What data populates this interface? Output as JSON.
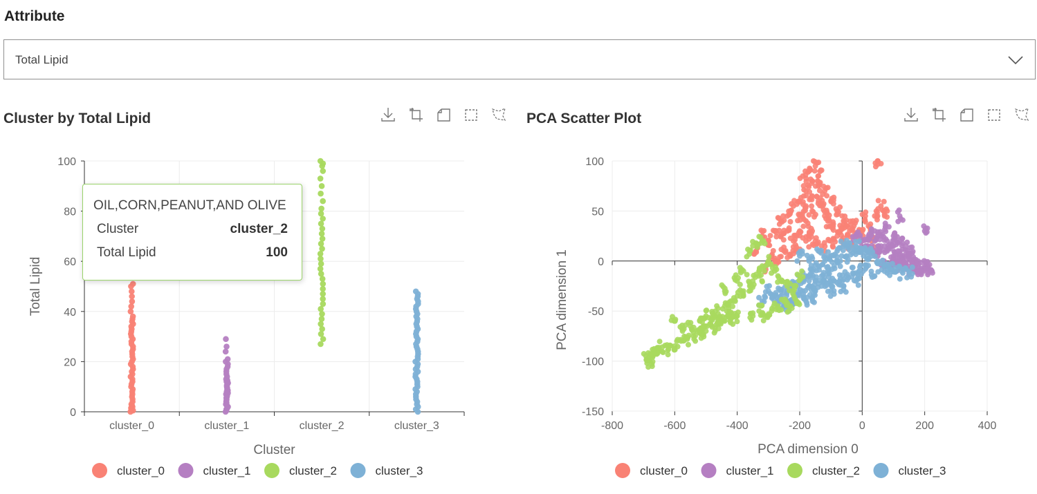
{
  "attribute": {
    "label": "Attribute",
    "selected": "Total Lipid"
  },
  "colors": {
    "cluster_0": "#f98275",
    "cluster_1": "#b57fc2",
    "cluster_2": "#a8d95e",
    "cluster_3": "#7eb1d6"
  },
  "toolbar_icons": [
    "download-icon",
    "rect-select-icon",
    "lasso-icon",
    "zoom-icon",
    "polygon-select-icon"
  ],
  "left_panel": {
    "title": "Cluster by Total Lipid"
  },
  "right_panel": {
    "title": "PCA Scatter Plot"
  },
  "tooltip": {
    "title": "OIL,CORN,PEANUT,AND OLIVE",
    "rows": [
      {
        "label": "Cluster",
        "value": "cluster_2"
      },
      {
        "label": "Total Lipid",
        "value": "100"
      }
    ]
  },
  "chart_data": [
    {
      "type": "scatter",
      "title": "Cluster by Total Lipid",
      "xlabel": "Cluster",
      "ylabel": "Total Lipid",
      "categories": [
        "cluster_0",
        "cluster_1",
        "cluster_2",
        "cluster_3"
      ],
      "ylim": [
        0,
        100
      ],
      "yticks": [
        0,
        20,
        40,
        60,
        80,
        100
      ],
      "grid": true,
      "legend": "bottom",
      "series": [
        {
          "name": "cluster_0",
          "range": [
            0,
            51
          ],
          "values": [
            0,
            0.5,
            1,
            1.5,
            2,
            2.5,
            3,
            4,
            5,
            6,
            7,
            8,
            9,
            10,
            11,
            12,
            13,
            14,
            15,
            16,
            17,
            18,
            19,
            20,
            21,
            22,
            23,
            24,
            25,
            26,
            27,
            28,
            29,
            30,
            31,
            32,
            33,
            34,
            35,
            36,
            37,
            38,
            40,
            42,
            44,
            46,
            48,
            50,
            51
          ]
        },
        {
          "name": "cluster_1",
          "range": [
            0,
            29
          ],
          "values": [
            0,
            0.5,
            1,
            1.5,
            2,
            2.5,
            3,
            3.5,
            4,
            4.5,
            5,
            5.5,
            6,
            6.5,
            7,
            7.5,
            8,
            8.5,
            9,
            9.5,
            10,
            10.5,
            11,
            11.5,
            12,
            12.5,
            13,
            14,
            15,
            16,
            17,
            18,
            19,
            20,
            21,
            24,
            26,
            29
          ]
        },
        {
          "name": "cluster_2",
          "range": [
            27,
            100
          ],
          "values": [
            27,
            29,
            31,
            33,
            35,
            37,
            39,
            41,
            43,
            45,
            47,
            49,
            51,
            53,
            55,
            57,
            59,
            61,
            63,
            65,
            67,
            69,
            71,
            73,
            75,
            77,
            79,
            81,
            84,
            87,
            90,
            93,
            96,
            98,
            99,
            100
          ]
        },
        {
          "name": "cluster_3",
          "range": [
            0,
            48
          ],
          "values": [
            0,
            1,
            2,
            3,
            4,
            5,
            6,
            7,
            8,
            9,
            10,
            11,
            12,
            13,
            14,
            15,
            16,
            17,
            18,
            19,
            20,
            21,
            22,
            23,
            24,
            25,
            26,
            27,
            28,
            29,
            30,
            31,
            32,
            33,
            34,
            35,
            36,
            37,
            38,
            39,
            40,
            41,
            42,
            43,
            44,
            45,
            46,
            47,
            48
          ]
        }
      ]
    },
    {
      "type": "scatter",
      "title": "PCA Scatter Plot",
      "xlabel": "PCA dimension 0",
      "ylabel": "PCA dimension 1",
      "xlim": [
        -800,
        400
      ],
      "ylim": [
        -150,
        100
      ],
      "xticks": [
        -800,
        -600,
        -400,
        -200,
        0,
        200,
        400
      ],
      "yticks": [
        -150,
        -100,
        -50,
        0,
        50,
        100
      ],
      "grid": true,
      "legend": "bottom",
      "series": [
        {
          "name": "cluster_0",
          "points": [
            [
              -300,
              20
            ],
            [
              -280,
              30
            ],
            [
              -260,
              40
            ],
            [
              -240,
              45
            ],
            [
              -220,
              55
            ],
            [
              -200,
              60
            ],
            [
              -180,
              70
            ],
            [
              -160,
              80
            ],
            [
              -150,
              95
            ],
            [
              -170,
              90
            ],
            [
              -140,
              85
            ],
            [
              -120,
              70
            ],
            [
              -100,
              60
            ],
            [
              -80,
              50
            ],
            [
              -60,
              40
            ],
            [
              -40,
              30
            ],
            [
              -20,
              25
            ],
            [
              0,
              30
            ],
            [
              20,
              35
            ],
            [
              40,
              45
            ],
            [
              60,
              55
            ],
            [
              50,
              100
            ],
            [
              -250,
              10
            ],
            [
              -220,
              20
            ],
            [
              -200,
              30
            ],
            [
              -180,
              40
            ],
            [
              -160,
              50
            ],
            [
              -140,
              60
            ],
            [
              -120,
              45
            ],
            [
              -100,
              35
            ],
            [
              -80,
              25
            ],
            [
              -60,
              20
            ],
            [
              -40,
              15
            ],
            [
              -200,
              45
            ],
            [
              -180,
              55
            ],
            [
              -160,
              65
            ],
            [
              -140,
              75
            ],
            [
              -190,
              85
            ],
            [
              -130,
              55
            ],
            [
              -110,
              40
            ],
            [
              -310,
              -5
            ],
            [
              -290,
              5
            ],
            [
              -270,
              0
            ],
            [
              -230,
              5
            ],
            [
              -210,
              10
            ],
            [
              -150,
              20
            ],
            [
              -130,
              15
            ],
            [
              -100,
              20
            ],
            [
              -70,
              30
            ],
            [
              -50,
              35
            ],
            [
              -30,
              40
            ],
            [
              10,
              45
            ],
            [
              30,
              20
            ],
            [
              80,
              50
            ],
            [
              -340,
              10
            ],
            [
              -320,
              25
            ],
            [
              -260,
              25
            ],
            [
              -240,
              30
            ],
            [
              -180,
              20
            ],
            [
              -160,
              30
            ]
          ]
        },
        {
          "name": "cluster_1",
          "points": [
            [
              -20,
              25
            ],
            [
              0,
              20
            ],
            [
              20,
              25
            ],
            [
              40,
              20
            ],
            [
              60,
              15
            ],
            [
              80,
              10
            ],
            [
              100,
              5
            ],
            [
              120,
              0
            ],
            [
              140,
              -2
            ],
            [
              160,
              -4
            ],
            [
              180,
              -6
            ],
            [
              200,
              -8
            ],
            [
              220,
              -10
            ],
            [
              40,
              30
            ],
            [
              60,
              25
            ],
            [
              80,
              20
            ],
            [
              100,
              15
            ],
            [
              120,
              10
            ],
            [
              140,
              5
            ],
            [
              160,
              0
            ],
            [
              180,
              -3
            ],
            [
              200,
              -5
            ],
            [
              100,
              25
            ],
            [
              120,
              20
            ],
            [
              140,
              15
            ],
            [
              160,
              8
            ],
            [
              120,
              45
            ],
            [
              200,
              30
            ],
            [
              150,
              -8
            ],
            [
              90,
              -5
            ],
            [
              50,
              5
            ],
            [
              70,
              0
            ],
            [
              30,
              10
            ],
            [
              10,
              15
            ],
            [
              210,
              -8
            ],
            [
              190,
              -10
            ],
            [
              170,
              -9
            ],
            [
              130,
              -6
            ],
            [
              110,
              -4
            ],
            [
              75,
              35
            ]
          ]
        },
        {
          "name": "cluster_3",
          "points": [
            [
              -300,
              -30
            ],
            [
              -270,
              -40
            ],
            [
              -250,
              -45
            ],
            [
              -230,
              -40
            ],
            [
              -210,
              -35
            ],
            [
              -190,
              -30
            ],
            [
              -170,
              -25
            ],
            [
              -150,
              -20
            ],
            [
              -130,
              -15
            ],
            [
              -110,
              -10
            ],
            [
              -90,
              -5
            ],
            [
              -70,
              0
            ],
            [
              -50,
              5
            ],
            [
              -30,
              8
            ],
            [
              -10,
              10
            ],
            [
              10,
              8
            ],
            [
              30,
              5
            ],
            [
              50,
              0
            ],
            [
              70,
              -5
            ],
            [
              90,
              -8
            ],
            [
              110,
              -10
            ],
            [
              130,
              -12
            ],
            [
              150,
              -12
            ],
            [
              -200,
              -20
            ],
            [
              -180,
              -15
            ],
            [
              -160,
              -10
            ],
            [
              -140,
              -5
            ],
            [
              -120,
              0
            ],
            [
              -100,
              5
            ],
            [
              -80,
              10
            ],
            [
              -60,
              15
            ],
            [
              -40,
              18
            ],
            [
              -20,
              15
            ],
            [
              0,
              12
            ],
            [
              20,
              10
            ],
            [
              -150,
              -30
            ],
            [
              -130,
              -25
            ],
            [
              -110,
              -22
            ],
            [
              -90,
              -20
            ],
            [
              -70,
              -18
            ],
            [
              -50,
              -15
            ],
            [
              -30,
              -12
            ],
            [
              -10,
              -10
            ],
            [
              10,
              -8
            ],
            [
              -180,
              -40
            ],
            [
              -160,
              -38
            ],
            [
              -240,
              -30
            ],
            [
              -220,
              -25
            ],
            [
              -200,
              5
            ],
            [
              -170,
              0
            ],
            [
              -140,
              10
            ],
            [
              -100,
              -30
            ],
            [
              -60,
              -25
            ],
            [
              -20,
              -20
            ],
            [
              40,
              -15
            ],
            [
              80,
              -12
            ],
            [
              -320,
              -40
            ],
            [
              -280,
              -35
            ],
            [
              -260,
              -30
            ],
            [
              -240,
              -45
            ]
          ]
        },
        {
          "name": "cluster_2",
          "points": [
            [
              -690,
              -98
            ],
            [
              -680,
              -100
            ],
            [
              -670,
              -95
            ],
            [
              -660,
              -92
            ],
            [
              -650,
              -90
            ],
            [
              -620,
              -88
            ],
            [
              -600,
              -85
            ],
            [
              -580,
              -80
            ],
            [
              -560,
              -78
            ],
            [
              -540,
              -75
            ],
            [
              -520,
              -72
            ],
            [
              -500,
              -70
            ],
            [
              -480,
              -66
            ],
            [
              -460,
              -63
            ],
            [
              -440,
              -60
            ],
            [
              -420,
              -58
            ],
            [
              -400,
              -55
            ],
            [
              -500,
              -55
            ],
            [
              -470,
              -50
            ],
            [
              -440,
              -45
            ],
            [
              -420,
              -40
            ],
            [
              -400,
              -35
            ],
            [
              -380,
              -30
            ],
            [
              -360,
              -25
            ],
            [
              -350,
              -20
            ],
            [
              -330,
              -15
            ],
            [
              -320,
              -5
            ],
            [
              -300,
              0
            ],
            [
              -280,
              -10
            ],
            [
              -260,
              -20
            ],
            [
              -240,
              -25
            ],
            [
              -220,
              -30
            ],
            [
              -200,
              -15
            ],
            [
              -350,
              -55
            ],
            [
              -330,
              -50
            ],
            [
              -310,
              -55
            ],
            [
              -290,
              -50
            ],
            [
              -270,
              -45
            ],
            [
              -250,
              -40
            ],
            [
              -230,
              -45
            ],
            [
              -210,
              -40
            ],
            [
              -600,
              -60
            ],
            [
              -550,
              -65
            ],
            [
              -510,
              -68
            ],
            [
              -480,
              -56
            ],
            [
              -440,
              -30
            ],
            [
              -360,
              10
            ],
            [
              -340,
              18
            ],
            [
              -320,
              20
            ],
            [
              -380,
              -10
            ],
            [
              -400,
              -20
            ],
            [
              -420,
              -52
            ],
            [
              -460,
              -58
            ],
            [
              -520,
              -60
            ],
            [
              -575,
              -70
            ],
            [
              -640,
              -86
            ],
            [
              -675,
              -93
            ]
          ]
        }
      ]
    }
  ],
  "legend": [
    "cluster_0",
    "cluster_1",
    "cluster_2",
    "cluster_3"
  ]
}
